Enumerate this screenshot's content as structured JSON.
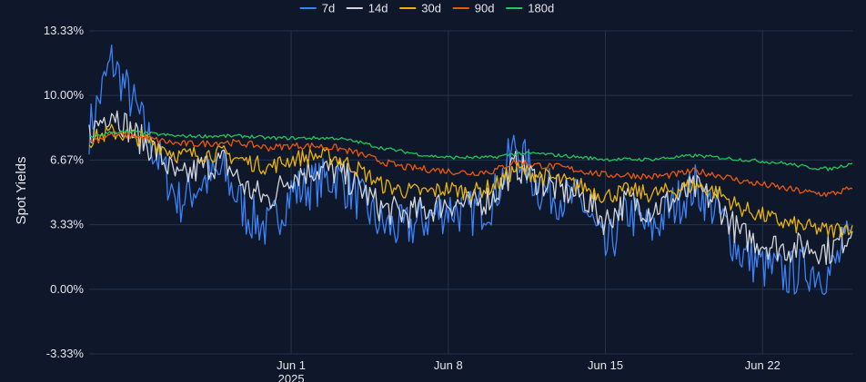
{
  "chart_data": {
    "type": "line",
    "ylabel": "Spot Yields",
    "xlabel": "",
    "y_tick_labels": [
      "13.33%",
      "10.00%",
      "6.67%",
      "3.33%",
      "0.00%",
      "-3.33%"
    ],
    "y_ticks": [
      13.33,
      10.0,
      6.67,
      3.33,
      0.0,
      -3.33
    ],
    "ylim": [
      -3.33,
      13.33
    ],
    "x_range": [
      "2025-05-23",
      "2025-06-26"
    ],
    "x_ticks": [
      {
        "date": "2025-06-01",
        "label": "Jun 1",
        "sublabel": "2025"
      },
      {
        "date": "2025-06-08",
        "label": "Jun 8",
        "sublabel": ""
      },
      {
        "date": "2025-06-15",
        "label": "Jun 15",
        "sublabel": ""
      },
      {
        "date": "2025-06-22",
        "label": "Jun 22",
        "sublabel": ""
      }
    ],
    "grid": true,
    "legend_position": "top-center",
    "series": [
      {
        "name": "7d",
        "color": "#3b82f6",
        "x": [
          "2025-05-23",
          "2025-05-24",
          "2025-05-25",
          "2025-05-26",
          "2025-05-27",
          "2025-05-28",
          "2025-05-29",
          "2025-05-30",
          "2025-05-31",
          "2025-06-01",
          "2025-06-02",
          "2025-06-03",
          "2025-06-04",
          "2025-06-05",
          "2025-06-06",
          "2025-06-07",
          "2025-06-08",
          "2025-06-09",
          "2025-06-10",
          "2025-06-11",
          "2025-06-12",
          "2025-06-13",
          "2025-06-14",
          "2025-06-15",
          "2025-06-16",
          "2025-06-17",
          "2025-06-18",
          "2025-06-19",
          "2025-06-20",
          "2025-06-21",
          "2025-06-22",
          "2025-06-23",
          "2025-06-24",
          "2025-06-25",
          "2025-06-26"
        ],
        "values": [
          8.2,
          11.8,
          9.5,
          6.9,
          4.5,
          5.5,
          6.0,
          3.9,
          3.1,
          5.0,
          5.4,
          5.8,
          4.7,
          3.3,
          3.1,
          3.6,
          4.2,
          3.9,
          4.6,
          7.5,
          5.2,
          4.8,
          4.4,
          1.9,
          4.0,
          3.0,
          4.3,
          5.3,
          4.0,
          1.9,
          1.2,
          0.7,
          1.1,
          0.8,
          2.9
        ]
      },
      {
        "name": "14d",
        "color": "#d1d5db",
        "x": [
          "2025-05-23",
          "2025-05-24",
          "2025-05-25",
          "2025-05-26",
          "2025-05-27",
          "2025-05-28",
          "2025-05-29",
          "2025-05-30",
          "2025-05-31",
          "2025-06-01",
          "2025-06-02",
          "2025-06-03",
          "2025-06-04",
          "2025-06-05",
          "2025-06-06",
          "2025-06-07",
          "2025-06-08",
          "2025-06-09",
          "2025-06-10",
          "2025-06-11",
          "2025-06-12",
          "2025-06-13",
          "2025-06-14",
          "2025-06-15",
          "2025-06-16",
          "2025-06-17",
          "2025-06-18",
          "2025-06-19",
          "2025-06-20",
          "2025-06-21",
          "2025-06-22",
          "2025-06-23",
          "2025-06-24",
          "2025-06-25",
          "2025-06-26"
        ],
        "values": [
          8.0,
          9.3,
          8.0,
          7.1,
          5.6,
          6.3,
          6.6,
          5.2,
          4.6,
          5.9,
          6.2,
          6.1,
          5.3,
          4.2,
          3.9,
          4.1,
          4.5,
          4.3,
          4.8,
          6.4,
          5.6,
          5.1,
          4.8,
          3.5,
          4.6,
          4.1,
          4.6,
          5.2,
          4.4,
          2.8,
          2.4,
          2.1,
          2.2,
          2.0,
          3.0
        ]
      },
      {
        "name": "30d",
        "color": "#eab308",
        "x": [
          "2025-05-23",
          "2025-05-24",
          "2025-05-25",
          "2025-05-26",
          "2025-05-27",
          "2025-05-28",
          "2025-05-29",
          "2025-05-30",
          "2025-05-31",
          "2025-06-01",
          "2025-06-02",
          "2025-06-03",
          "2025-06-04",
          "2025-06-05",
          "2025-06-06",
          "2025-06-07",
          "2025-06-08",
          "2025-06-09",
          "2025-06-10",
          "2025-06-11",
          "2025-06-12",
          "2025-06-13",
          "2025-06-14",
          "2025-06-15",
          "2025-06-16",
          "2025-06-17",
          "2025-06-18",
          "2025-06-19",
          "2025-06-20",
          "2025-06-21",
          "2025-06-22",
          "2025-06-23",
          "2025-06-24",
          "2025-06-25",
          "2025-06-26"
        ],
        "values": [
          7.7,
          8.1,
          7.9,
          7.5,
          6.9,
          7.0,
          7.0,
          6.6,
          6.3,
          6.7,
          6.9,
          6.8,
          6.2,
          5.4,
          5.1,
          5.0,
          5.2,
          5.0,
          5.3,
          6.2,
          5.9,
          5.6,
          5.3,
          4.8,
          5.1,
          4.9,
          5.1,
          5.4,
          5.0,
          4.2,
          3.8,
          3.4,
          3.2,
          3.0,
          3.3
        ]
      },
      {
        "name": "90d",
        "color": "#ea580c",
        "x": [
          "2025-05-23",
          "2025-05-24",
          "2025-05-25",
          "2025-05-26",
          "2025-05-27",
          "2025-05-28",
          "2025-05-29",
          "2025-05-30",
          "2025-05-31",
          "2025-06-01",
          "2025-06-02",
          "2025-06-03",
          "2025-06-04",
          "2025-06-05",
          "2025-06-06",
          "2025-06-07",
          "2025-06-08",
          "2025-06-09",
          "2025-06-10",
          "2025-06-11",
          "2025-06-12",
          "2025-06-13",
          "2025-06-14",
          "2025-06-15",
          "2025-06-16",
          "2025-06-17",
          "2025-06-18",
          "2025-06-19",
          "2025-06-20",
          "2025-06-21",
          "2025-06-22",
          "2025-06-23",
          "2025-06-24",
          "2025-06-25",
          "2025-06-26"
        ],
        "values": [
          7.6,
          8.0,
          7.9,
          7.7,
          7.5,
          7.5,
          7.6,
          7.5,
          7.3,
          7.4,
          7.4,
          7.3,
          7.0,
          6.6,
          6.3,
          6.2,
          6.1,
          6.0,
          6.1,
          6.6,
          6.4,
          6.3,
          6.1,
          5.9,
          5.9,
          5.8,
          5.9,
          6.1,
          5.9,
          5.6,
          5.4,
          5.2,
          5.0,
          4.9,
          5.2
        ]
      },
      {
        "name": "180d",
        "color": "#22c55e",
        "x": [
          "2025-05-23",
          "2025-05-24",
          "2025-05-25",
          "2025-05-26",
          "2025-05-27",
          "2025-05-28",
          "2025-05-29",
          "2025-05-30",
          "2025-05-31",
          "2025-06-01",
          "2025-06-02",
          "2025-06-03",
          "2025-06-04",
          "2025-06-05",
          "2025-06-06",
          "2025-06-07",
          "2025-06-08",
          "2025-06-09",
          "2025-06-10",
          "2025-06-11",
          "2025-06-12",
          "2025-06-13",
          "2025-06-14",
          "2025-06-15",
          "2025-06-16",
          "2025-06-17",
          "2025-06-18",
          "2025-06-19",
          "2025-06-20",
          "2025-06-21",
          "2025-06-22",
          "2025-06-23",
          "2025-06-24",
          "2025-06-25",
          "2025-06-26"
        ],
        "values": [
          7.8,
          8.1,
          8.1,
          8.0,
          7.9,
          7.9,
          7.9,
          7.9,
          7.8,
          7.8,
          7.8,
          7.8,
          7.6,
          7.3,
          7.1,
          6.9,
          6.8,
          6.8,
          6.8,
          7.0,
          7.0,
          6.9,
          6.8,
          6.7,
          6.7,
          6.7,
          6.8,
          6.9,
          6.8,
          6.7,
          6.6,
          6.5,
          6.3,
          6.2,
          6.5
        ]
      }
    ]
  }
}
